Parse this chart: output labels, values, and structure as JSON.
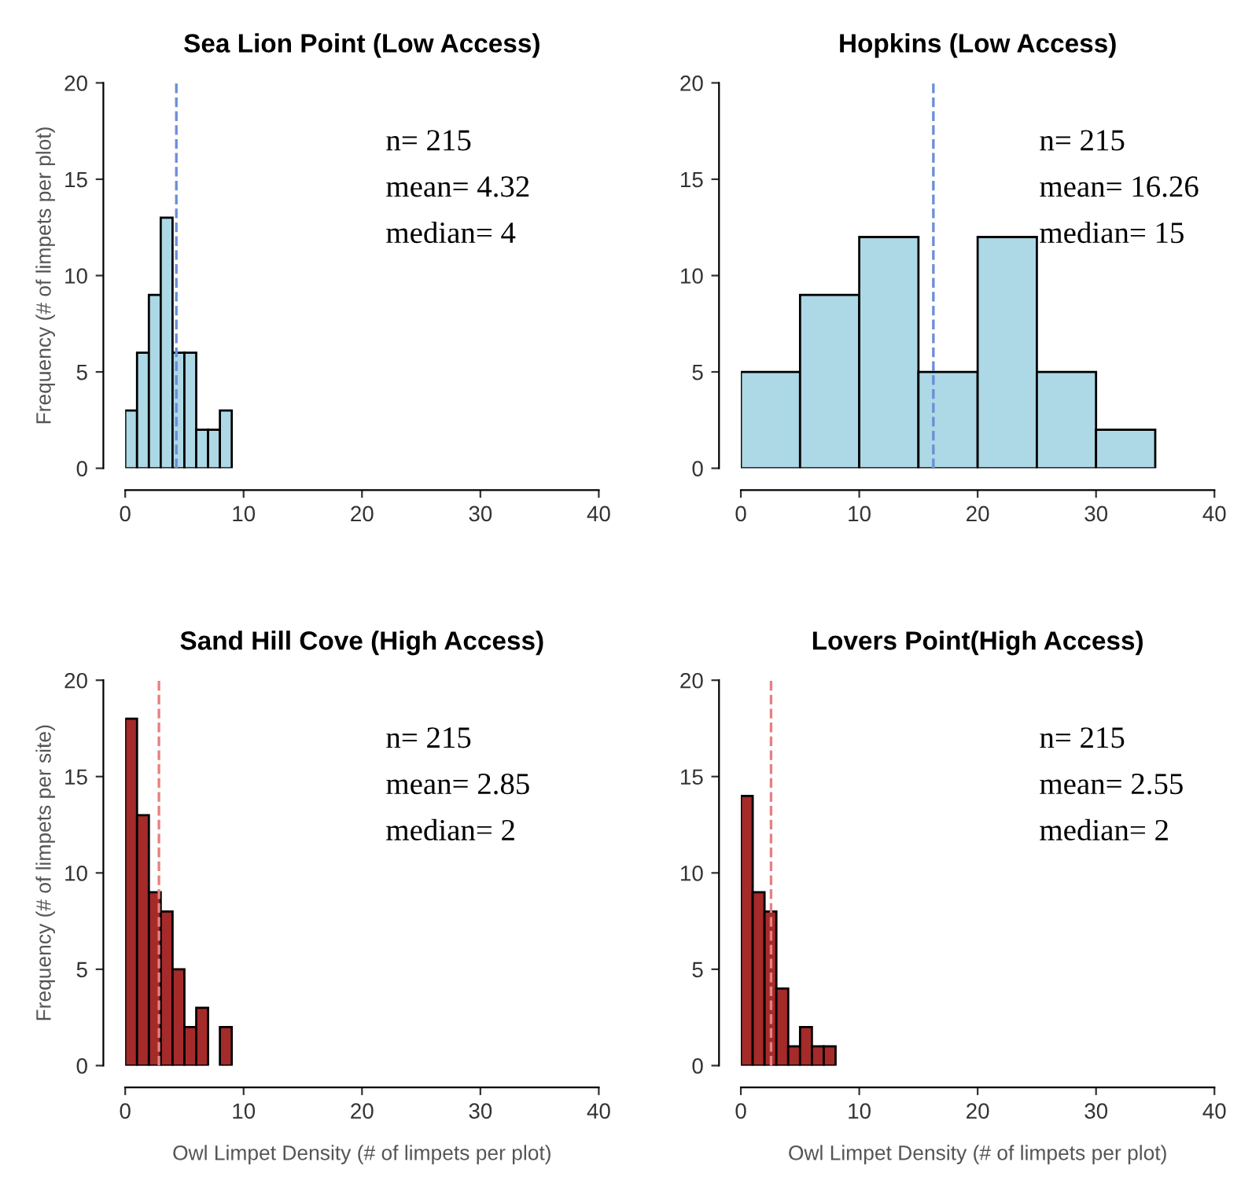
{
  "chart_data": [
    {
      "type": "histogram",
      "title": "Sea Lion Point (Low Access)",
      "ylabel": "Frequency (# of limpets per plot)",
      "bins": [
        0,
        1,
        2,
        3,
        4,
        5,
        6,
        7,
        8,
        9
      ],
      "values": [
        3,
        6,
        9,
        13,
        6,
        6,
        2,
        2,
        3
      ],
      "color": "#add8e6",
      "xlim": [
        0,
        40
      ],
      "ylim": [
        0,
        20
      ],
      "xticks": [
        0,
        10,
        20,
        30,
        40
      ],
      "yticks": [
        0,
        5,
        10,
        15,
        20
      ],
      "grid": false,
      "ref_lines": [
        {
          "axis": "x",
          "value": 4.32,
          "color": "#6a8fd8",
          "line_style": "dashed"
        }
      ],
      "annotations": [
        "n= 215",
        "mean= 4.32",
        "median= 4"
      ]
    },
    {
      "type": "histogram",
      "title": "Hopkins (Low Access)",
      "bins": [
        0,
        5,
        10,
        15,
        20,
        25,
        30,
        35
      ],
      "values": [
        5,
        9,
        12,
        5,
        12,
        5,
        2
      ],
      "color": "#add8e6",
      "xlim": [
        0,
        40
      ],
      "ylim": [
        0,
        20
      ],
      "xticks": [
        0,
        10,
        20,
        30,
        40
      ],
      "yticks": [
        0,
        5,
        10,
        15,
        20
      ],
      "grid": false,
      "ref_lines": [
        {
          "axis": "x",
          "value": 16.26,
          "color": "#6a8fd8",
          "line_style": "dashed"
        }
      ],
      "annotations": [
        "n= 215",
        "mean= 16.26",
        "median= 15"
      ]
    },
    {
      "type": "histogram",
      "title": "Sand Hill Cove (High Access)",
      "ylabel": "Frequency (# of limpets per site)",
      "xlabel": "Owl Limpet Density (# of limpets per plot)",
      "bins": [
        0,
        1,
        2,
        3,
        4,
        5,
        6,
        7,
        8,
        9
      ],
      "values": [
        18,
        13,
        9,
        8,
        5,
        2,
        3,
        0,
        2
      ],
      "color": "#a52a2a",
      "xlim": [
        0,
        40
      ],
      "ylim": [
        0,
        20
      ],
      "xticks": [
        0,
        10,
        20,
        30,
        40
      ],
      "yticks": [
        0,
        5,
        10,
        15,
        20
      ],
      "grid": false,
      "ref_lines": [
        {
          "axis": "x",
          "value": 2.85,
          "color": "#e88080",
          "line_style": "dashed"
        }
      ],
      "annotations": [
        "n= 215",
        "mean= 2.85",
        "median= 2"
      ]
    },
    {
      "type": "histogram",
      "title": "Lovers Point(High Access)",
      "xlabel": "Owl Limpet Density (# of limpets per plot)",
      "bins": [
        0,
        1,
        2,
        3,
        4,
        5,
        6,
        7,
        8
      ],
      "values": [
        14,
        9,
        8,
        4,
        1,
        2,
        1,
        1
      ],
      "color": "#a52a2a",
      "xlim": [
        0,
        40
      ],
      "ylim": [
        0,
        20
      ],
      "xticks": [
        0,
        10,
        20,
        30,
        40
      ],
      "yticks": [
        0,
        5,
        10,
        15,
        20
      ],
      "grid": false,
      "ref_lines": [
        {
          "axis": "x",
          "value": 2.55,
          "color": "#e88080",
          "line_style": "dashed"
        }
      ],
      "annotations": [
        "n= 215",
        "mean= 2.55",
        "median= 2"
      ]
    }
  ]
}
